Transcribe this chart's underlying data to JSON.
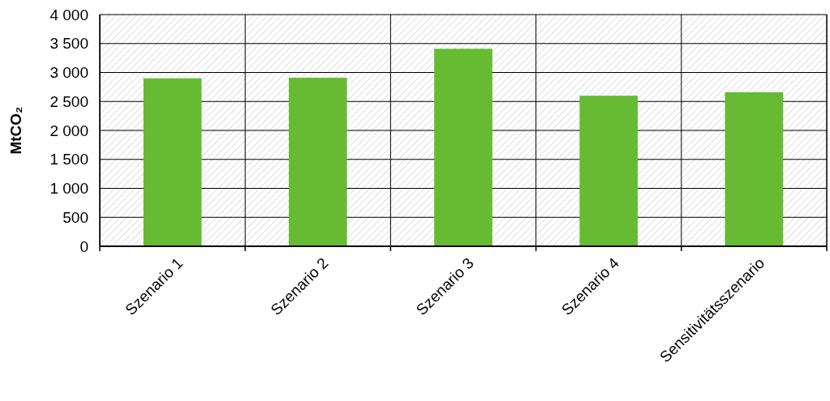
{
  "chart_data": {
    "type": "bar",
    "ylabel": "MtCO₂",
    "categories": [
      "Szenario 1",
      "Szenario 2",
      "Szenario 3",
      "Szenario 4",
      "Sensitivitätsszenario"
    ],
    "values": [
      2900,
      2910,
      3410,
      2600,
      2660
    ],
    "color": "#66bb33",
    "ylim": [
      0,
      4000
    ],
    "yticks": [
      0,
      500,
      {
        "value": 1000,
        "label": "1 000"
      },
      {
        "value": 1500,
        "label": "1 500"
      },
      {
        "value": 2000,
        "label": "2 000"
      },
      {
        "value": 2500,
        "label": "2 500"
      },
      {
        "value": 3000,
        "label": "3 000"
      },
      {
        "value": 3500,
        "label": "3 500"
      },
      {
        "value": 4000,
        "label": "4 000"
      }
    ],
    "grid": true
  }
}
